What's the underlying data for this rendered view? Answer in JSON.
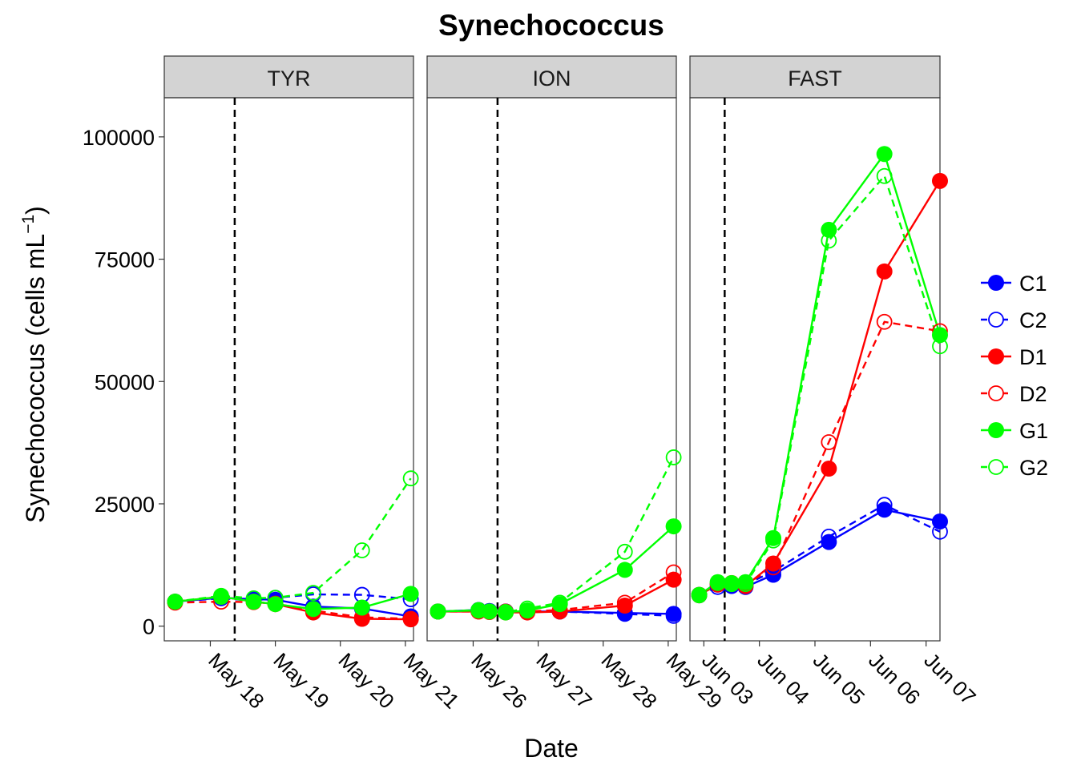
{
  "chart_data": {
    "type": "line",
    "title": "Synechococcus",
    "xlabel": "Date",
    "ylabel_main": "Synechococcus (cells mL",
    "ylabel_sup": "−1",
    "ylabel_close": ")",
    "ylim": [
      -3000,
      108000
    ],
    "yticks": [
      0,
      25000,
      50000,
      75000,
      100000
    ],
    "ytick_labels": [
      "0",
      "25000",
      "50000",
      "75000",
      "100000"
    ],
    "grid": false,
    "legend_position": "right",
    "legend": [
      {
        "name": "C1",
        "color": "#0000FF",
        "filled": true,
        "dashed": false
      },
      {
        "name": "C2",
        "color": "#0000FF",
        "filled": false,
        "dashed": true
      },
      {
        "name": "D1",
        "color": "#FF0000",
        "filled": true,
        "dashed": false
      },
      {
        "name": "D2",
        "color": "#FF0000",
        "filled": false,
        "dashed": true
      },
      {
        "name": "G1",
        "color": "#00FF00",
        "filled": true,
        "dashed": false
      },
      {
        "name": "G2",
        "color": "#00FF00",
        "filled": false,
        "dashed": true
      }
    ],
    "panels": [
      {
        "label": "TYR",
        "xlim": [
          "2016-05-17T07:00",
          "2016-05-21T03:00"
        ],
        "ticks": [
          "2016-05-18",
          "2016-05-19",
          "2016-05-20",
          "2016-05-21"
        ],
        "tick_labels": [
          "May 18",
          "May 19",
          "May 20",
          "May 21"
        ],
        "vline": "2016-05-18T09:00",
        "series": {
          "C1": {
            "x": [
              "2016-05-17T11:00",
              "2016-05-18T04:00",
              "2016-05-18T16:00",
              "2016-05-19T00:00",
              "2016-05-19T14:00",
              "2016-05-20T08:00",
              "2016-05-21T02:00"
            ],
            "y": [
              5000,
              5800,
              5500,
              5400,
              4000,
              3600,
              2000
            ]
          },
          "C2": {
            "x": [
              "2016-05-17T11:00",
              "2016-05-18T04:00",
              "2016-05-18T16:00",
              "2016-05-19T00:00",
              "2016-05-19T14:00",
              "2016-05-20T08:00",
              "2016-05-21T02:00"
            ],
            "y": [
              5000,
              5700,
              5200,
              5800,
              6500,
              6400,
              5500
            ]
          },
          "D1": {
            "x": [
              "2016-05-17T11:00",
              "2016-05-18T04:00",
              "2016-05-18T16:00",
              "2016-05-19T00:00",
              "2016-05-19T14:00",
              "2016-05-20T08:00",
              "2016-05-21T02:00"
            ],
            "y": [
              5000,
              6000,
              5000,
              4500,
              2800,
              1500,
              1400
            ]
          },
          "D2": {
            "x": [
              "2016-05-17T11:00",
              "2016-05-18T04:00",
              "2016-05-18T16:00",
              "2016-05-19T00:00",
              "2016-05-19T14:00",
              "2016-05-20T08:00",
              "2016-05-21T02:00"
            ],
            "y": [
              4800,
              5000,
              4900,
              4600,
              3200,
              1800,
              1500
            ]
          },
          "G1": {
            "x": [
              "2016-05-17T11:00",
              "2016-05-18T04:00",
              "2016-05-18T16:00",
              "2016-05-19T00:00",
              "2016-05-19T14:00",
              "2016-05-20T08:00",
              "2016-05-21T02:00"
            ],
            "y": [
              5000,
              6000,
              5000,
              4500,
              3500,
              3800,
              6600
            ]
          },
          "G2": {
            "x": [
              "2016-05-17T11:00",
              "2016-05-18T04:00",
              "2016-05-18T16:00",
              "2016-05-19T00:00",
              "2016-05-19T14:00",
              "2016-05-20T08:00",
              "2016-05-21T02:00"
            ],
            "y": [
              5000,
              6200,
              5700,
              5800,
              6800,
              15500,
              30200
            ]
          }
        }
      },
      {
        "label": "ION",
        "xlim": [
          "2016-05-25T07:00",
          "2016-05-29T03:00"
        ],
        "ticks": [
          "2016-05-26",
          "2016-05-27",
          "2016-05-28",
          "2016-05-29"
        ],
        "tick_labels": [
          "May 26",
          "May 27",
          "May 28",
          "May 29"
        ],
        "vline": "2016-05-26T09:00",
        "series": {
          "C1": {
            "x": [
              "2016-05-25T11:00",
              "2016-05-26T02:00",
              "2016-05-26T06:00",
              "2016-05-26T12:00",
              "2016-05-26T20:00",
              "2016-05-27T08:00",
              "2016-05-28T08:00",
              "2016-05-29T02:00"
            ],
            "y": [
              3000,
              3300,
              3100,
              3000,
              3000,
              3000,
              2700,
              2500
            ]
          },
          "C2": {
            "x": [
              "2016-05-25T11:00",
              "2016-05-26T02:00",
              "2016-05-26T06:00",
              "2016-05-26T12:00",
              "2016-05-26T20:00",
              "2016-05-27T08:00",
              "2016-05-28T08:00",
              "2016-05-29T02:00"
            ],
            "y": [
              3000,
              3200,
              3000,
              3000,
              2900,
              3000,
              2500,
              2100
            ]
          },
          "D1": {
            "x": [
              "2016-05-25T11:00",
              "2016-05-26T02:00",
              "2016-05-26T06:00",
              "2016-05-26T12:00",
              "2016-05-26T20:00",
              "2016-05-27T08:00",
              "2016-05-28T08:00",
              "2016-05-29T02:00"
            ],
            "y": [
              3000,
              3000,
              2900,
              2800,
              2800,
              3000,
              4200,
              9500
            ]
          },
          "D2": {
            "x": [
              "2016-05-25T11:00",
              "2016-05-26T02:00",
              "2016-05-26T06:00",
              "2016-05-26T12:00",
              "2016-05-26T20:00",
              "2016-05-27T08:00",
              "2016-05-28T08:00",
              "2016-05-29T02:00"
            ],
            "y": [
              3000,
              3000,
              3000,
              3000,
              3000,
              3300,
              4800,
              11000
            ]
          },
          "G1": {
            "x": [
              "2016-05-25T11:00",
              "2016-05-26T02:00",
              "2016-05-26T06:00",
              "2016-05-26T12:00",
              "2016-05-26T20:00",
              "2016-05-27T08:00",
              "2016-05-28T08:00",
              "2016-05-29T02:00"
            ],
            "y": [
              3000,
              3200,
              3000,
              2800,
              3200,
              4500,
              11500,
              20400
            ]
          },
          "G2": {
            "x": [
              "2016-05-25T11:00",
              "2016-05-26T02:00",
              "2016-05-26T06:00",
              "2016-05-26T12:00",
              "2016-05-26T20:00",
              "2016-05-27T08:00",
              "2016-05-28T08:00",
              "2016-05-29T02:00"
            ],
            "y": [
              3000,
              3300,
              3000,
              2900,
              3600,
              4800,
              15200,
              34500
            ]
          }
        }
      },
      {
        "label": "FAST",
        "xlim": [
          "2016-06-02T18:00",
          "2016-06-07T06:00"
        ],
        "ticks": [
          "2016-06-03",
          "2016-06-04",
          "2016-06-05",
          "2016-06-06",
          "2016-06-07"
        ],
        "tick_labels": [
          "Jun 03",
          "Jun 04",
          "Jun 05",
          "Jun 06",
          "Jun 07"
        ],
        "vline": "2016-06-03T09:00",
        "series": {
          "C1": {
            "x": [
              "2016-06-02T22:00",
              "2016-06-03T06:00",
              "2016-06-03T12:00",
              "2016-06-03T18:00",
              "2016-06-04T06:00",
              "2016-06-05T06:00",
              "2016-06-06T06:00",
              "2016-06-07T06:00"
            ],
            "y": [
              6400,
              8500,
              8300,
              8000,
              10500,
              17200,
              23800,
              21400
            ]
          },
          "C2": {
            "x": [
              "2016-06-02T22:00",
              "2016-06-03T06:00",
              "2016-06-03T12:00",
              "2016-06-03T18:00",
              "2016-06-04T06:00",
              "2016-06-05T06:00",
              "2016-06-06T06:00",
              "2016-06-07T06:00"
            ],
            "y": [
              6300,
              8000,
              8200,
              8500,
              11200,
              18300,
              24800,
              19300
            ]
          },
          "D1": {
            "x": [
              "2016-06-02T22:00",
              "2016-06-03T06:00",
              "2016-06-03T12:00",
              "2016-06-03T18:00",
              "2016-06-04T06:00",
              "2016-06-05T06:00",
              "2016-06-06T06:00",
              "2016-06-07T06:00"
            ],
            "y": [
              6400,
              8500,
              8800,
              8200,
              12800,
              32200,
              72500,
              91000
            ]
          },
          "D2": {
            "x": [
              "2016-06-02T22:00",
              "2016-06-03T06:00",
              "2016-06-03T12:00",
              "2016-06-03T18:00",
              "2016-06-04T06:00",
              "2016-06-05T06:00",
              "2016-06-06T06:00",
              "2016-06-07T06:00"
            ],
            "y": [
              6300,
              8600,
              8700,
              8500,
              12000,
              37600,
              62200,
              60300
            ]
          },
          "G1": {
            "x": [
              "2016-06-02T22:00",
              "2016-06-03T06:00",
              "2016-06-03T12:00",
              "2016-06-03T18:00",
              "2016-06-04T06:00",
              "2016-06-05T06:00",
              "2016-06-06T06:00",
              "2016-06-07T06:00"
            ],
            "y": [
              6400,
              9000,
              8600,
              9000,
              18000,
              81000,
              96500,
              59500
            ]
          },
          "G2": {
            "x": [
              "2016-06-02T22:00",
              "2016-06-03T06:00",
              "2016-06-03T12:00",
              "2016-06-03T18:00",
              "2016-06-04T06:00",
              "2016-06-05T06:00",
              "2016-06-06T06:00",
              "2016-06-07T06:00"
            ],
            "y": [
              6300,
              8800,
              8800,
              8600,
              17500,
              78800,
              92000,
              57200
            ]
          }
        }
      }
    ]
  }
}
